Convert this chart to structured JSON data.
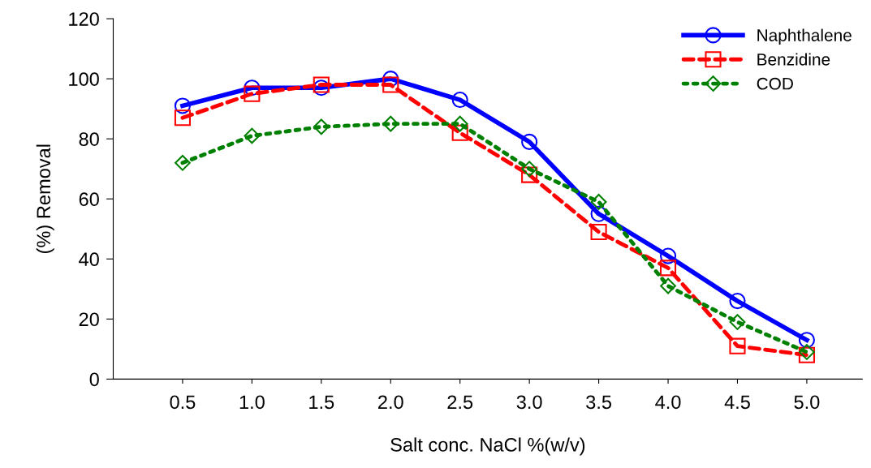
{
  "chart_data": {
    "type": "line",
    "xlabel": "Salt conc. NaCl %(w/v)",
    "ylabel": "(%) Removal",
    "x": [
      0.5,
      1.0,
      1.5,
      2.0,
      2.5,
      3.0,
      3.5,
      4.0,
      4.5,
      5.0
    ],
    "xlim": [
      0,
      5.4
    ],
    "xticks": [
      {
        "value": 0.5,
        "label": "0.5"
      },
      {
        "value": 1.0,
        "label": "1.0"
      },
      {
        "value": 1.5,
        "label": "1.5"
      },
      {
        "value": 2.0,
        "label": "2.0"
      },
      {
        "value": 2.5,
        "label": "2.5"
      },
      {
        "value": 3.0,
        "label": "3.0"
      },
      {
        "value": 3.5,
        "label": "3.5"
      },
      {
        "value": 4.0,
        "label": "4.0"
      },
      {
        "value": 4.5,
        "label": "4.5"
      },
      {
        "value": 5.0,
        "label": "5.0"
      }
    ],
    "ylim": [
      0,
      120
    ],
    "yticks": [
      0,
      20,
      40,
      60,
      80,
      100,
      120
    ],
    "legend": "top right",
    "grid": false,
    "series": [
      {
        "name": "Naphthalene",
        "color": "#0000ff",
        "marker": "circle",
        "line_style": "solid",
        "values": [
          91,
          97,
          97,
          100,
          93,
          79,
          55,
          41,
          26,
          13
        ]
      },
      {
        "name": "Benzidine",
        "color": "#ff0000",
        "marker": "square",
        "line_style": "dashed",
        "values": [
          87,
          95,
          98,
          98,
          82,
          68,
          49,
          37,
          11,
          8
        ]
      },
      {
        "name": "COD",
        "color": "#008000",
        "marker": "diamond",
        "line_style": "dotted",
        "values": [
          72,
          81,
          84,
          85,
          85,
          70,
          59,
          31,
          19,
          9
        ]
      }
    ]
  }
}
